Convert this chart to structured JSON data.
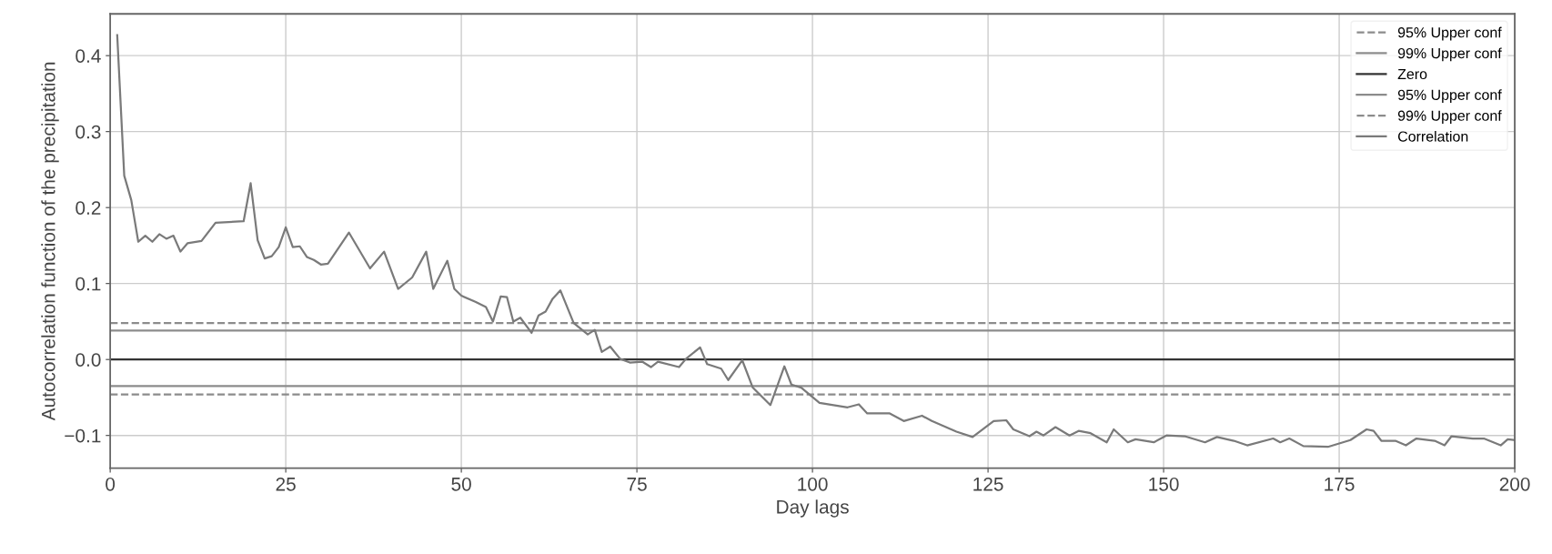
{
  "chart_data": {
    "type": "line",
    "xlabel": "Day lags",
    "ylabel": "Autocorrelation function of the precipitation",
    "xlim": [
      0,
      200
    ],
    "xticks": [
      0,
      25,
      50,
      75,
      100,
      125,
      150,
      175,
      200
    ],
    "ylim": [
      -0.143,
      0.455
    ],
    "yticks": [
      {
        "value": -0.1,
        "label": "−0.1"
      },
      {
        "value": 0,
        "label": "0.0"
      },
      {
        "value": 0.1,
        "label": "0.1"
      },
      {
        "value": 0.2,
        "label": "0.2"
      },
      {
        "value": 0.3,
        "label": "0.3"
      },
      {
        "value": 0.4,
        "label": "0.4"
      }
    ],
    "grid": true,
    "legend": "top right",
    "series": [
      {
        "name": "95% Upper conf",
        "color": "#8c8c8c",
        "line_style": "dashed",
        "x": [
          0,
          200
        ],
        "values": [
          0.048,
          0.048
        ]
      },
      {
        "name": "99% Upper conf",
        "color": "#8c8c8c",
        "line_style": "solid",
        "x": [
          0,
          200
        ],
        "values": [
          0.038,
          0.038
        ]
      },
      {
        "name": "Zero",
        "color": "#333333",
        "line_style": "solid",
        "x": [
          0,
          200
        ],
        "values": [
          0,
          0
        ]
      },
      {
        "name": "95% Upper conf",
        "color": "#8c8c8c",
        "line_style": "solid",
        "x": [
          0,
          200
        ],
        "values": [
          -0.035,
          -0.035
        ]
      },
      {
        "name": "99% Upper conf",
        "color": "#8c8c8c",
        "line_style": "dashed",
        "x": [
          0,
          200
        ],
        "values": [
          -0.046,
          -0.046
        ]
      },
      {
        "name": "Correlation",
        "color": "#7a7a7a",
        "line_style": "solid",
        "x": [
          1,
          2,
          3,
          4,
          5,
          6,
          7,
          8,
          9,
          10,
          11,
          13,
          15,
          19,
          20,
          21,
          22,
          23,
          24,
          25,
          26,
          27,
          28,
          29,
          30,
          31,
          34,
          37,
          39,
          41,
          43,
          45,
          46,
          48,
          49,
          50,
          52,
          53.5,
          54.5,
          55.6,
          56.5,
          57.4,
          58.4,
          60,
          61,
          62,
          63,
          64.1,
          66,
          68,
          69,
          70,
          71.2,
          72.6,
          74,
          75.8,
          77,
          78,
          81,
          82,
          84,
          85,
          87,
          88,
          90,
          91.5,
          94,
          96,
          97,
          98.4,
          101,
          105,
          106.6,
          107.8,
          111,
          113,
          115.6,
          117,
          120.5,
          122.8,
          125.8,
          127.6,
          128.6,
          130.9,
          131.9,
          132.9,
          134.6,
          136.6,
          137.9,
          139.6,
          141.9,
          142.9,
          144.9,
          146,
          148.6,
          150.4,
          153,
          155.9,
          157.6,
          160,
          161.9,
          165.6,
          166.6,
          167.9,
          169.9,
          173.4,
          176.6,
          178.9,
          179.9,
          181,
          183,
          184.5,
          186,
          188.6,
          190,
          191,
          194,
          195.6,
          198,
          199,
          200
        ],
        "values": [
          0.427,
          0.242,
          0.21,
          0.155,
          0.163,
          0.155,
          0.165,
          0.159,
          0.163,
          0.142,
          0.153,
          0.156,
          0.18,
          0.182,
          0.232,
          0.157,
          0.133,
          0.136,
          0.148,
          0.174,
          0.148,
          0.149,
          0.135,
          0.131,
          0.125,
          0.126,
          0.167,
          0.12,
          0.142,
          0.093,
          0.108,
          0.142,
          0.093,
          0.13,
          0.093,
          0.084,
          0.076,
          0.069,
          0.05,
          0.083,
          0.082,
          0.05,
          0.055,
          0.035,
          0.058,
          0.063,
          0.08,
          0.091,
          0.048,
          0.033,
          0.039,
          0.01,
          0.017,
          0.001,
          -0.004,
          -0.003,
          -0.01,
          -0.003,
          -0.01,
          0.001,
          0.016,
          -0.006,
          -0.012,
          -0.027,
          -0.001,
          -0.037,
          -0.06,
          -0.009,
          -0.033,
          -0.037,
          -0.057,
          -0.063,
          -0.059,
          -0.071,
          -0.071,
          -0.081,
          -0.074,
          -0.081,
          -0.095,
          -0.102,
          -0.081,
          -0.08,
          -0.092,
          -0.101,
          -0.095,
          -0.1,
          -0.089,
          -0.1,
          -0.094,
          -0.097,
          -0.109,
          -0.092,
          -0.109,
          -0.105,
          -0.109,
          -0.1,
          -0.101,
          -0.109,
          -0.102,
          -0.107,
          -0.113,
          -0.104,
          -0.109,
          -0.104,
          -0.114,
          -0.115,
          -0.106,
          -0.092,
          -0.094,
          -0.107,
          -0.107,
          -0.113,
          -0.104,
          -0.107,
          -0.113,
          -0.101,
          -0.104,
          -0.104,
          -0.113,
          -0.105,
          -0.106
        ]
      }
    ]
  }
}
